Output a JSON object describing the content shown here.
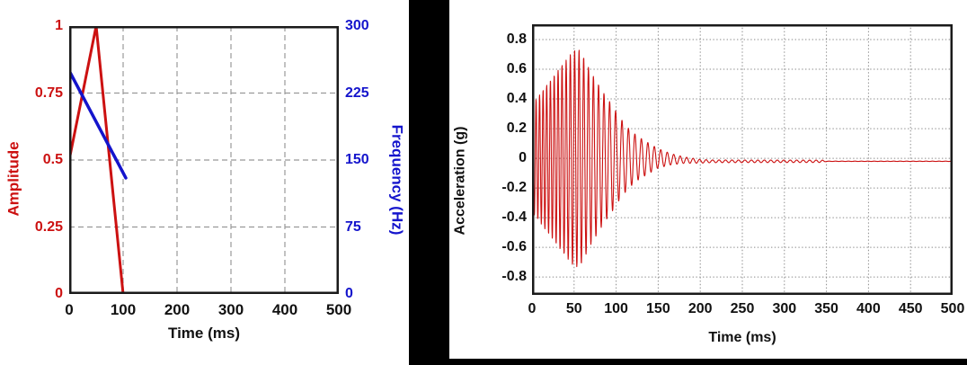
{
  "page": {
    "background": "#ffffff",
    "divider_color": "#000000",
    "frame_color": "#1a1a1a",
    "red": "#cc1111",
    "blue": "#1414cc",
    "grid_color_left": "#999999",
    "grid_color_right": "#8a8a8a"
  },
  "chart_data": [
    {
      "id": "pulse-definition",
      "type": "line",
      "xlabel": "Time (ms)",
      "xlim": [
        0,
        500
      ],
      "x_tick_values": [
        0,
        100,
        200,
        300,
        400,
        500
      ],
      "x_tick_labels": [
        "0",
        "100",
        "200",
        "300",
        "400",
        "500"
      ],
      "grid": "dashed",
      "grid_x_values": [
        100,
        200,
        300,
        400
      ],
      "y_left": {
        "label": "Amplitude",
        "color": "#cc1111",
        "lim": [
          0,
          1
        ],
        "tick_values": [
          0,
          0.25,
          0.5,
          0.75,
          1
        ],
        "tick_labels": [
          "0",
          "0.25",
          "0.5",
          "0.75",
          "1"
        ],
        "grid_values": [
          0.25,
          0.5,
          0.75
        ]
      },
      "y_right": {
        "label": "Frequency (Hz)",
        "color": "#1414cc",
        "lim": [
          0,
          300
        ],
        "tick_values": [
          0,
          75,
          150,
          225,
          300
        ],
        "tick_labels": [
          "0",
          "75",
          "150",
          "225",
          "300"
        ]
      },
      "series": [
        {
          "name": "amplitude-envelope",
          "axis": "left",
          "color": "#cc1111",
          "width": 3,
          "points": [
            [
              0,
              0.5
            ],
            [
              50,
              1.0
            ],
            [
              100,
              0
            ]
          ]
        },
        {
          "name": "frequency-sweep",
          "axis": "right",
          "color": "#1414cc",
          "width": 3.5,
          "points": [
            [
              0,
              250
            ],
            [
              105,
              130
            ]
          ]
        }
      ]
    },
    {
      "id": "acceleration-waveform",
      "type": "line",
      "xlabel": "Time (ms)",
      "ylabel": "Acceleration (g)",
      "xlim": [
        0,
        500
      ],
      "ylim": [
        -0.92,
        0.903
      ],
      "x_tick_values": [
        0,
        50,
        100,
        150,
        200,
        250,
        300,
        350,
        400,
        450,
        500
      ],
      "x_tick_labels": [
        "0",
        "50",
        "100",
        "150",
        "200",
        "250",
        "300",
        "350",
        "400",
        "450",
        "500"
      ],
      "y_tick_values": [
        0.8,
        0.6,
        0.4,
        0.2,
        0,
        -0.2,
        -0.4,
        -0.6,
        -0.8
      ],
      "y_tick_labels": [
        "0.8",
        "0.6",
        "0.4",
        "0.2",
        "0",
        "-0.2",
        "-0.4",
        "-0.6",
        "-0.8"
      ],
      "grid": "dotted",
      "grid_x_values": [
        50,
        100,
        150,
        200,
        250,
        300,
        350,
        400,
        450
      ],
      "grid_y_values": [
        0.8,
        0.6,
        0.4,
        0.2,
        0,
        -0.2,
        -0.4,
        -0.6,
        -0.8
      ],
      "line_color": "#cc1111",
      "signal": {
        "dt_ms": 0.25,
        "freq_start_hz": 250,
        "freq_end_hz": 130,
        "sweep_end_ms": 105,
        "envelope_g": [
          [
            0,
            0.36
          ],
          [
            25,
            0.55
          ],
          [
            50,
            0.73
          ],
          [
            57,
            0.73
          ],
          [
            70,
            0.58
          ],
          [
            85,
            0.44
          ],
          [
            95,
            0.36
          ],
          [
            105,
            0.27
          ],
          [
            115,
            0.2
          ],
          [
            125,
            0.15
          ],
          [
            135,
            0.115
          ],
          [
            150,
            0.065
          ],
          [
            165,
            0.038
          ],
          [
            180,
            0.022
          ],
          [
            200,
            0.012
          ],
          [
            215,
            0.009
          ],
          [
            345,
            0.008
          ],
          [
            350,
            0.001
          ],
          [
            500,
            0.001
          ]
        ],
        "baseline_g": [
          [
            0,
            0
          ],
          [
            150,
            0
          ],
          [
            200,
            -0.02
          ],
          [
            500,
            -0.02
          ]
        ],
        "peak_g": 0.73,
        "peak_time_ms": 57
      }
    }
  ]
}
